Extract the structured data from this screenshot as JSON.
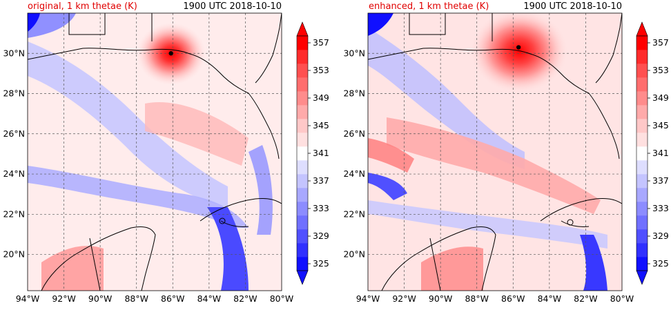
{
  "panels": [
    {
      "title_left": "original, 1 km thetae (K)",
      "title_right": "1900 UTC 2018-10-10",
      "storm": {
        "lon": -86.1,
        "lat": 30.0
      }
    },
    {
      "title_left": "enhanced, 1 km thetae (K)",
      "title_right": "1900 UTC 2018-10-10",
      "storm": {
        "lon": -85.7,
        "lat": 30.3
      }
    }
  ],
  "axes": {
    "lon_range": [
      -94,
      -80
    ],
    "lat_range": [
      18.2,
      32.0
    ],
    "lon_ticks": [
      {
        "v": -94,
        "label": "94°W"
      },
      {
        "v": -92,
        "label": "92°W"
      },
      {
        "v": -90,
        "label": "90°W"
      },
      {
        "v": -88,
        "label": "88°W"
      },
      {
        "v": -86,
        "label": "86°W"
      },
      {
        "v": -84,
        "label": "84°W"
      },
      {
        "v": -82,
        "label": "82°W"
      },
      {
        "v": -80,
        "label": "80°W"
      }
    ],
    "lat_ticks": [
      {
        "v": 20,
        "label": "20°N"
      },
      {
        "v": 22,
        "label": "22°N"
      },
      {
        "v": 24,
        "label": "24°N"
      },
      {
        "v": 26,
        "label": "26°N"
      },
      {
        "v": 28,
        "label": "28°N"
      },
      {
        "v": 30,
        "label": "30°N"
      }
    ]
  },
  "colorbar": {
    "levels": [
      325,
      327,
      329,
      331,
      333,
      335,
      337,
      339,
      341,
      343,
      345,
      347,
      349,
      351,
      353,
      355,
      357
    ],
    "labels": [
      "325",
      "329",
      "333",
      "337",
      "341",
      "345",
      "349",
      "353",
      "357"
    ],
    "colors": [
      "#1010ff",
      "#3030ff",
      "#5050ff",
      "#7070ff",
      "#8c8cff",
      "#a8a8ff",
      "#c4c4ff",
      "#dedeff",
      "#ffffff",
      "#ffe0e0",
      "#ffc8c8",
      "#ffaaaa",
      "#ff8c8c",
      "#ff6e6e",
      "#ff5050",
      "#ff2c2c",
      "#ff0000"
    ],
    "extend": "both"
  },
  "palette": {
    "blue": "#0000ff",
    "red": "#ff0000",
    "neutral": "#ffffff"
  }
}
